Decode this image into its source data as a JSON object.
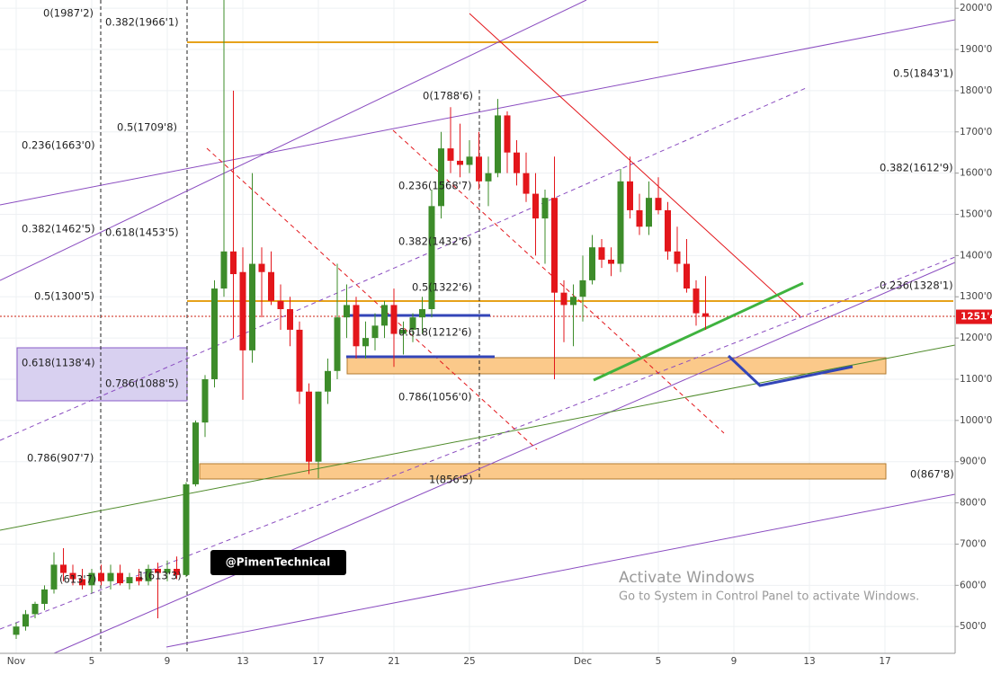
{
  "chart_data": {
    "type": "candlestick",
    "categories": [
      "Nov",
      null,
      null,
      null,
      null,
      null,
      null,
      null,
      "5",
      null,
      null,
      null,
      null,
      null,
      null,
      null,
      "9",
      null,
      null,
      null,
      null,
      null,
      null,
      null,
      "13",
      null,
      null,
      null,
      null,
      null,
      null,
      null,
      "17",
      null,
      null,
      null,
      null,
      null,
      null,
      null,
      "21",
      null,
      null,
      null,
      null,
      null,
      null,
      null,
      "25",
      null,
      null,
      null,
      null,
      null,
      null,
      null,
      null,
      null,
      null,
      null,
      "Dec",
      null,
      null,
      null,
      null,
      null,
      null,
      null,
      "5",
      null,
      null,
      null,
      null,
      null,
      null,
      null,
      "9",
      null,
      null,
      null,
      null,
      null,
      null,
      null,
      "13",
      null,
      null,
      null,
      null,
      null,
      null,
      null,
      "17"
    ],
    "open": [
      480,
      500,
      530,
      555,
      590,
      650,
      630,
      615,
      600,
      630,
      610,
      630,
      605,
      620,
      610,
      640,
      630,
      640,
      625,
      845,
      995,
      1100,
      1320,
      1410,
      1360,
      1170,
      1380,
      1360,
      1290,
      1270,
      1220,
      1070,
      900,
      1070,
      1120,
      1250,
      1280,
      1180,
      1200,
      1230,
      1280,
      1210,
      1220,
      1250,
      1270,
      1520,
      1660,
      1630,
      1620,
      1640,
      1580,
      1600,
      1740,
      1650,
      1600,
      1550,
      1490,
      1540,
      1310,
      1280,
      1300,
      1340,
      1420,
      1390,
      1380,
      1580,
      1510,
      1470,
      1540,
      1510,
      1410,
      1380,
      1320,
      1260,
      null,
      null,
      null,
      null,
      null,
      null,
      null,
      null,
      null,
      null,
      null,
      null,
      null,
      null,
      null,
      null,
      null,
      null,
      null
    ],
    "high": [
      510,
      540,
      560,
      600,
      680,
      690,
      650,
      640,
      640,
      650,
      650,
      650,
      630,
      640,
      650,
      655,
      660,
      670,
      850,
      1000,
      1110,
      1340,
      2050,
      1800,
      1420,
      1600,
      1420,
      1410,
      1330,
      1300,
      1240,
      1090,
      1070,
      1150,
      1380,
      1330,
      1300,
      1240,
      1260,
      1290,
      1320,
      1240,
      1260,
      1300,
      1560,
      1700,
      1760,
      1720,
      1680,
      1700,
      1640,
      1780,
      1750,
      1680,
      1650,
      1600,
      1560,
      1640,
      1340,
      1330,
      1400,
      1450,
      1440,
      1420,
      1610,
      1640,
      1550,
      1580,
      1590,
      1530,
      1470,
      1440,
      1340,
      1350,
      null,
      null,
      null,
      null,
      null,
      null,
      null,
      null,
      null,
      null,
      null,
      null,
      null,
      null,
      null,
      null,
      null,
      null,
      null
    ],
    "low": [
      470,
      490,
      520,
      540,
      580,
      610,
      600,
      590,
      580,
      600,
      590,
      600,
      590,
      600,
      600,
      520,
      610,
      615,
      620,
      840,
      960,
      1080,
      1300,
      1200,
      1050,
      1140,
      1250,
      1280,
      1220,
      1180,
      1040,
      870,
      860,
      1040,
      1100,
      1200,
      1150,
      1150,
      1170,
      1200,
      1130,
      1160,
      1190,
      1210,
      1250,
      1490,
      1600,
      1590,
      1600,
      1560,
      1520,
      1590,
      1600,
      1570,
      1530,
      1400,
      1380,
      1100,
      1190,
      1180,
      1240,
      1330,
      1370,
      1350,
      1360,
      1490,
      1450,
      1450,
      1500,
      1390,
      1360,
      1310,
      1230,
      1220,
      null,
      null,
      null,
      null,
      null,
      null,
      null,
      null,
      null,
      null,
      null,
      null,
      null,
      null,
      null,
      null,
      null,
      null,
      null
    ],
    "close": [
      500,
      530,
      555,
      590,
      650,
      630,
      615,
      600,
      630,
      610,
      630,
      605,
      620,
      610,
      640,
      630,
      640,
      625,
      845,
      995,
      1100,
      1320,
      1410,
      1355,
      1170,
      1380,
      1360,
      1290,
      1270,
      1220,
      1070,
      900,
      1070,
      1120,
      1250,
      1280,
      1180,
      1200,
      1230,
      1280,
      1210,
      1220,
      1250,
      1270,
      1520,
      1660,
      1630,
      1620,
      1640,
      1580,
      1600,
      1740,
      1650,
      1600,
      1550,
      1490,
      1540,
      1310,
      1280,
      1300,
      1340,
      1420,
      1390,
      1380,
      1580,
      1510,
      1470,
      1540,
      1510,
      1410,
      1380,
      1320,
      1260,
      1251.4,
      null,
      null,
      null,
      null,
      null,
      null,
      null,
      null,
      null,
      null,
      null,
      null,
      null,
      null,
      null,
      null,
      null,
      null,
      null
    ],
    "up_color": "#3d8c2a",
    "down_color": "#e3161b",
    "ylim": [
      435,
      2020
    ],
    "yticks": [
      {
        "value": 500,
        "label": "500'0"
      },
      {
        "value": 600,
        "label": "600'0"
      },
      {
        "value": 700,
        "label": "700'0"
      },
      {
        "value": 800,
        "label": "800'0"
      },
      {
        "value": 900,
        "label": "900'0"
      },
      {
        "value": 1000,
        "label": "1000'0"
      },
      {
        "value": 1100,
        "label": "1100'0"
      },
      {
        "value": 1200,
        "label": "1200'0"
      },
      {
        "value": 1300,
        "label": "1300'0"
      },
      {
        "value": 1400,
        "label": "1400'0"
      },
      {
        "value": 1500,
        "label": "1500'0"
      },
      {
        "value": 1600,
        "label": "1600'0"
      },
      {
        "value": 1700,
        "label": "1700'0"
      },
      {
        "value": 1800,
        "label": "1800'0"
      },
      {
        "value": 1900,
        "label": "1900'0"
      },
      {
        "value": 2000,
        "label": "2000'0"
      }
    ],
    "grid": true,
    "last_price": {
      "value": 1251.4,
      "label": "1251'4"
    },
    "annotations": [
      "0(1987'2)",
      "0.382(1966'1)",
      "0.5(1709'8)",
      "0.236(1663'0)",
      "0.382(1462'5)",
      "0.618(1453'5)",
      "0.5(1300'5)",
      "0.618(1138'4)",
      "0.786(1088'5)",
      "0.786(907'7)",
      "(613'7)",
      "1(613'3)",
      "0(1788'6)",
      "0.236(1568'7)",
      "0.382(1432'6)",
      "0.5(1322'6)",
      "0.618(1212'6)",
      "0.786(1056'0)",
      "1(856'5)",
      "0.5(1843'1)",
      "0.382(1612'9)",
      "0.236(1328'1)",
      "0(867'8)"
    ],
    "handle": "@PimenTechnical",
    "watermark": {
      "title": "Activate Windows",
      "text": "Go to System in Control Panel to activate Windows."
    }
  }
}
